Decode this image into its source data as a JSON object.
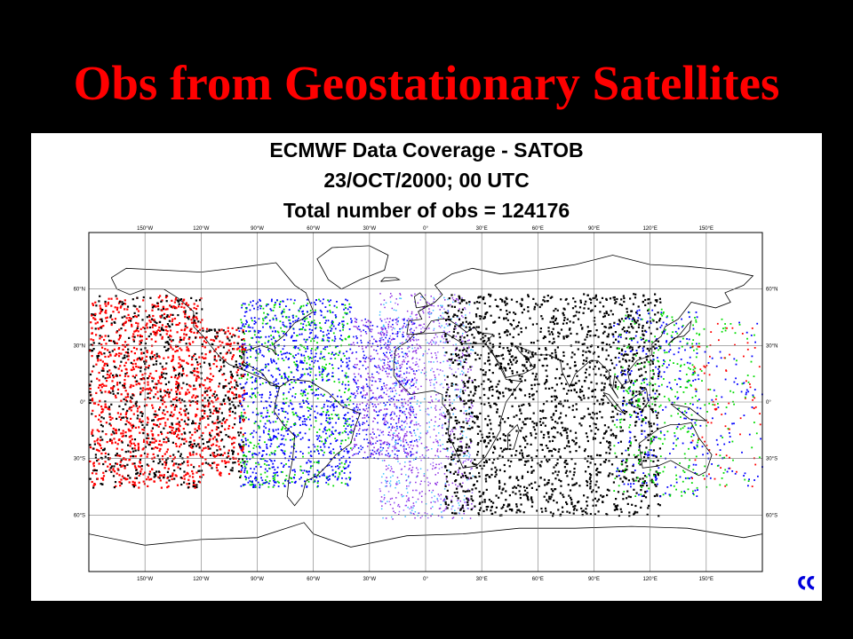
{
  "slide": {
    "title": "Obs from Geostationary Satellites"
  },
  "map": {
    "heading": "ECMWF Data Coverage  - SATOB",
    "date_line": "23/OCT/2000; 00 UTC",
    "total_line": "Total number of obs = 124176",
    "lon_labels": [
      "150°W",
      "120°W",
      "90°W",
      "60°W",
      "30°W",
      "0°",
      "30°E",
      "60°E",
      "90°E",
      "120°E",
      "150°E"
    ],
    "lat_labels": [
      "60°N",
      "30°N",
      "0°",
      "30°S",
      "60°S"
    ],
    "projection": "cylindrical equidistant",
    "observation_colors": {
      "goes_west": "#ff0000",
      "goes_east_blue": "#0000ff",
      "goes_east_green": "#00dd00",
      "meteosat": "#8a2be2",
      "meteosat_light": "#40c0ff",
      "indoex": "#000000",
      "gms": "#0000ff"
    },
    "logo_icon": "ecmwf-logo-icon"
  }
}
